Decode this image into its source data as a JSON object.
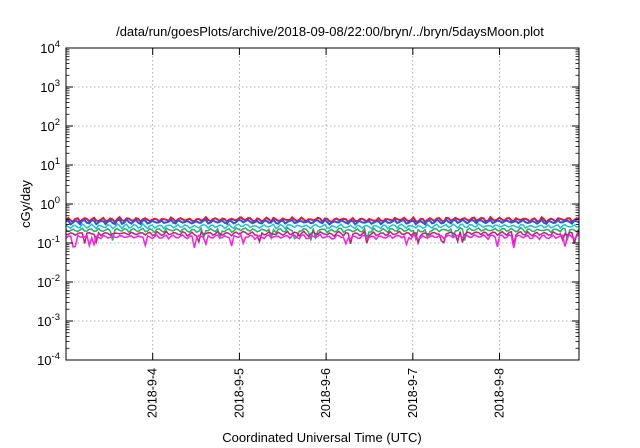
{
  "chart_data": {
    "type": "line",
    "title": "/data/run/goesPlots/archive/2018-09-08/22:00/bryn/../bryn/5daysMoon.plot",
    "xlabel": "Coordinated Universal Time (UTC)",
    "ylabel": "cGy/day",
    "yscale": "log",
    "ylim": [
      0.0001,
      10000
    ],
    "xlim": [
      "2018-09-03 00:00",
      "2018-09-08 22:00"
    ],
    "grid": true,
    "ytick_labels": [
      {
        "base": "10",
        "exp": "-4"
      },
      {
        "base": "10",
        "exp": "-3"
      },
      {
        "base": "10",
        "exp": "-2"
      },
      {
        "base": "10",
        "exp": "-1"
      },
      {
        "base": "10",
        "exp": "0"
      },
      {
        "base": "10",
        "exp": "1"
      },
      {
        "base": "10",
        "exp": "2"
      },
      {
        "base": "10",
        "exp": "3"
      },
      {
        "base": "10",
        "exp": "4"
      }
    ],
    "xtick_labels": [
      "2018-9-4",
      "2018-9-5",
      "2018-9-6",
      "2018-9-7",
      "2018-9-8"
    ],
    "series": [
      {
        "color": "#e8142b",
        "level": 0.4
      },
      {
        "color": "#2a52e8",
        "level": 0.35
      },
      {
        "color": "#19c4d6",
        "level": 0.27
      },
      {
        "color": "#1fb35a",
        "level": 0.215
      },
      {
        "color": "#c0207a",
        "level": 0.175
      },
      {
        "color": "#ff1ee8",
        "level": 0.145
      }
    ]
  }
}
